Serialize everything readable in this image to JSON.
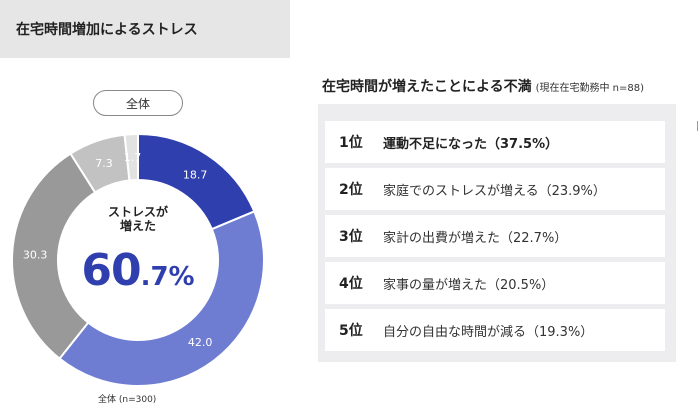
{
  "header": {
    "title": "在宅時間増加によるストレス"
  },
  "donut_tab": "全体",
  "center": {
    "label": "ストレスが\n増えた",
    "value_big": "60",
    "value_small": ".7%"
  },
  "footnote": "全体 (n=300)",
  "chart_data": {
    "type": "pie",
    "donut": true,
    "segments": [
      {
        "label": "18.7",
        "value": 18.7,
        "color": "#2f3fae"
      },
      {
        "label": "42.0",
        "value": 42.0,
        "color": "#6e7dd2"
      },
      {
        "label": "30.3",
        "value": 30.3,
        "color": "#999999"
      },
      {
        "label": "7.3",
        "value": 7.3,
        "color": "#c2c2c2"
      },
      {
        "label": "1.7",
        "value": 1.7,
        "color": "#e2e2e2"
      }
    ]
  },
  "ranking": {
    "title": "在宅時間が増えたことによる不満",
    "subtitle": "(現在在宅勤務中 n=88)",
    "items": [
      {
        "rank": "1位",
        "text": "運動不足になった（37.5%）"
      },
      {
        "rank": "2位",
        "text": "家庭でのストレスが増える（23.9%）"
      },
      {
        "rank": "3位",
        "text": "家計の出費が増えた（22.7%）"
      },
      {
        "rank": "4位",
        "text": "家事の量が増えた（20.5%）"
      },
      {
        "rank": "5位",
        "text": "自分の自由な時間が減る（19.3%）"
      }
    ]
  }
}
